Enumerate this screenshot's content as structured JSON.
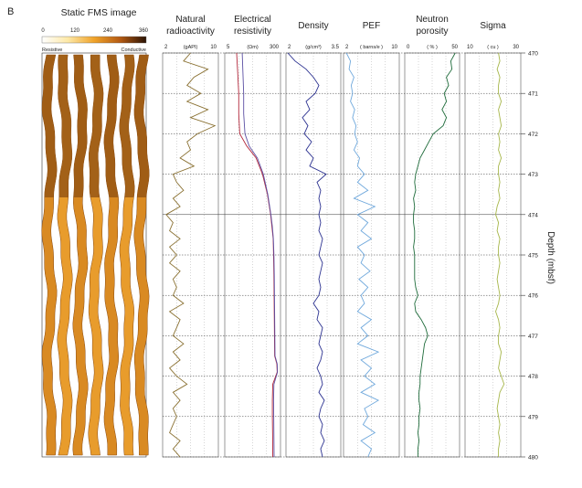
{
  "panel_label": "B",
  "fms": {
    "title": "Static FMS image",
    "ticks": [
      "0",
      "120",
      "240",
      "360"
    ],
    "left_label": "Resistive",
    "right_label": "Conductive"
  },
  "depth_axis": {
    "label": "Depth (mbsf)",
    "ticks": [
      "470",
      "471",
      "472",
      "473",
      "474",
      "475",
      "476",
      "477",
      "478",
      "479",
      "480"
    ]
  },
  "colors": {
    "radioactivity": "#8a7132",
    "resistivity_a": "#b3283c",
    "resistivity_b": "#5b4fa3",
    "density": "#2b3190",
    "pef": "#6fa8dc",
    "neutron": "#1e6b3a",
    "sigma": "#a6b649",
    "grid": "#000000"
  },
  "tracks": [
    {
      "id": "ngr",
      "title_lines": [
        "Natural",
        "radioactivity"
      ],
      "unit": "(gAPI)",
      "min_label": "2",
      "max_label": "10"
    },
    {
      "id": "res",
      "title_lines": [
        "Electrical",
        "resistivity"
      ],
      "unit": "(Ωm)",
      "min_label": "5",
      "max_label": "300"
    },
    {
      "id": "den",
      "title_lines": [
        "Density"
      ],
      "unit": "(g/cm³)",
      "min_label": "2",
      "max_label": "3.5"
    },
    {
      "id": "pef",
      "title_lines": [
        "PEF"
      ],
      "unit": "( barns/e )",
      "min_label": "2",
      "max_label": "10"
    },
    {
      "id": "nph",
      "title_lines": [
        "Neutron",
        "porosity"
      ],
      "unit": "( % )",
      "min_label": "0",
      "max_label": "50"
    },
    {
      "id": "sig",
      "title_lines": [
        "Sigma"
      ],
      "unit": "( cu )",
      "min_label": "10",
      "max_label": "30"
    }
  ],
  "chart_data": {
    "type": "line",
    "ylim": [
      470,
      480
    ],
    "series": [
      {
        "track": "ngr",
        "name": "",
        "xlim": [
          2,
          10
        ],
        "depth": [
          470.0,
          470.2,
          470.4,
          470.6,
          470.8,
          471.0,
          471.2,
          471.4,
          471.6,
          471.8,
          472.0,
          472.2,
          472.4,
          472.6,
          472.8,
          473.0,
          473.2,
          473.4,
          473.6,
          473.8,
          474.0,
          474.2,
          474.4,
          474.6,
          474.8,
          475.0,
          475.2,
          475.4,
          475.6,
          475.8,
          476.0,
          476.2,
          476.4,
          476.6,
          476.8,
          477.0,
          477.2,
          477.4,
          477.6,
          477.8,
          478.0,
          478.2,
          478.4,
          478.6,
          478.8,
          479.0,
          479.2,
          479.4,
          479.6,
          479.8,
          480.0
        ],
        "values": [
          6.0,
          5.0,
          8.5,
          6.5,
          5.5,
          7.5,
          5.5,
          8.5,
          6.0,
          9.5,
          7.0,
          5.5,
          6.0,
          4.5,
          6.5,
          3.5,
          4.0,
          5.0,
          3.5,
          4.5,
          2.5,
          3.5,
          3.0,
          4.5,
          3.0,
          4.0,
          3.0,
          4.5,
          3.5,
          4.0,
          3.5,
          5.0,
          3.0,
          4.5,
          4.0,
          3.5,
          5.0,
          3.5,
          4.5,
          3.0,
          4.0,
          5.5,
          3.5,
          4.5,
          3.5,
          4.0,
          3.5,
          3.0,
          4.5,
          3.5,
          4.5
        ]
      },
      {
        "track": "res",
        "name": "",
        "xlim": [
          5,
          300
        ],
        "depth": [
          470.0,
          470.5,
          471.0,
          471.5,
          472.0,
          472.3,
          472.6,
          473.0,
          473.5,
          474.0,
          474.3,
          474.6,
          475.0,
          475.5,
          476.0,
          476.5,
          477.0,
          477.5,
          477.7,
          477.9,
          478.2,
          478.6,
          479.0,
          479.5,
          480.0
        ],
        "values": [
          12,
          13,
          14,
          14,
          15,
          25,
          50,
          80,
          115,
          145,
          160,
          175,
          180,
          185,
          188,
          190,
          192,
          195,
          230,
          235,
          170,
          165,
          165,
          168,
          170
        ]
      },
      {
        "track": "res",
        "name": "",
        "xlim": [
          5,
          300
        ],
        "depth": [
          470.0,
          470.5,
          471.0,
          471.5,
          472.0,
          472.3,
          472.6,
          473.0,
          473.5,
          474.0,
          474.3,
          474.6,
          475.0,
          475.5,
          476.0,
          476.5,
          477.0,
          477.5,
          477.7,
          477.9,
          478.2,
          478.6,
          479.0,
          479.5,
          480.0
        ],
        "values": [
          18,
          19,
          20,
          20,
          22,
          30,
          55,
          85,
          118,
          148,
          165,
          178,
          185,
          190,
          192,
          195,
          198,
          200,
          235,
          240,
          185,
          180,
          182,
          185,
          188
        ]
      },
      {
        "track": "den",
        "name": "",
        "xlim": [
          2,
          3.5
        ],
        "depth": [
          470.0,
          470.2,
          470.4,
          470.6,
          470.8,
          471.0,
          471.2,
          471.4,
          471.6,
          471.8,
          472.0,
          472.2,
          472.4,
          472.6,
          472.8,
          473.0,
          473.2,
          473.4,
          473.6,
          473.8,
          474.0,
          474.2,
          474.4,
          474.6,
          474.8,
          475.0,
          475.2,
          475.4,
          475.6,
          475.8,
          476.0,
          476.2,
          476.4,
          476.6,
          476.8,
          477.0,
          477.2,
          477.4,
          477.6,
          477.8,
          478.0,
          478.2,
          478.4,
          478.6,
          478.8,
          479.0,
          479.2,
          479.4,
          479.6,
          479.8,
          480.0
        ],
        "values": [
          2.05,
          2.25,
          2.55,
          2.75,
          2.9,
          2.8,
          2.55,
          2.65,
          2.45,
          2.6,
          2.5,
          2.7,
          2.55,
          2.75,
          2.65,
          3.1,
          2.85,
          2.95,
          2.9,
          2.95,
          2.9,
          2.95,
          2.9,
          3.0,
          2.95,
          2.9,
          3.0,
          2.95,
          2.9,
          2.95,
          2.9,
          2.75,
          2.9,
          2.85,
          3.0,
          2.95,
          2.9,
          3.0,
          2.95,
          2.85,
          2.95,
          3.0,
          2.9,
          3.05,
          2.95,
          2.9,
          3.0,
          2.95,
          3.05,
          2.95,
          3.0
        ]
      },
      {
        "track": "pef",
        "name": "",
        "xlim": [
          2,
          10
        ],
        "depth": [
          470.0,
          470.2,
          470.4,
          470.6,
          470.8,
          471.0,
          471.2,
          471.4,
          471.6,
          471.8,
          472.0,
          472.2,
          472.4,
          472.6,
          472.8,
          473.0,
          473.2,
          473.4,
          473.6,
          473.8,
          474.0,
          474.2,
          474.4,
          474.6,
          474.8,
          475.0,
          475.2,
          475.4,
          475.6,
          475.8,
          476.0,
          476.2,
          476.4,
          476.6,
          476.8,
          477.0,
          477.2,
          477.4,
          477.6,
          477.8,
          478.0,
          478.2,
          478.4,
          478.6,
          478.8,
          479.0,
          479.2,
          479.4,
          479.6,
          479.8,
          480.0
        ],
        "values": [
          2.4,
          3.0,
          2.8,
          3.5,
          3.1,
          3.3,
          3.0,
          3.6,
          3.3,
          3.8,
          3.6,
          4.0,
          3.5,
          4.3,
          4.0,
          5.0,
          4.0,
          5.5,
          3.5,
          6.5,
          4.0,
          5.5,
          4.5,
          6.0,
          4.0,
          5.0,
          4.5,
          5.8,
          4.2,
          5.5,
          4.5,
          5.0,
          4.0,
          6.0,
          4.5,
          5.5,
          4.0,
          7.0,
          4.5,
          6.0,
          5.0,
          6.5,
          4.5,
          7.0,
          5.0,
          5.5,
          4.8,
          6.5,
          4.5,
          6.0,
          5.5
        ]
      },
      {
        "track": "nph",
        "name": "",
        "xlim": [
          0,
          50
        ],
        "depth": [
          470.0,
          470.2,
          470.4,
          470.6,
          470.8,
          471.0,
          471.2,
          471.4,
          471.6,
          471.8,
          472.0,
          472.2,
          472.4,
          472.6,
          472.8,
          473.0,
          473.2,
          473.4,
          473.6,
          473.8,
          474.0,
          474.2,
          474.4,
          474.6,
          474.8,
          475.0,
          475.2,
          475.4,
          475.6,
          475.8,
          476.0,
          476.2,
          476.4,
          476.6,
          476.8,
          477.0,
          477.2,
          477.4,
          477.6,
          477.8,
          478.0,
          478.2,
          478.4,
          478.6,
          478.8,
          479.0,
          479.2,
          479.4,
          479.6,
          479.8,
          480.0
        ],
        "values": [
          46,
          42,
          43,
          38,
          40,
          36,
          38,
          34,
          38,
          35,
          26,
          22,
          18,
          14,
          12,
          10,
          9,
          10,
          8,
          9,
          8,
          8,
          9,
          9,
          8,
          9,
          9,
          9,
          9,
          10,
          12,
          9,
          10,
          15,
          19,
          21,
          18,
          17,
          16,
          15,
          14,
          14,
          13,
          13,
          14,
          13,
          13,
          12,
          13,
          12,
          12
        ]
      },
      {
        "track": "sig",
        "name": "",
        "xlim": [
          10,
          30
        ],
        "depth": [
          470.0,
          470.2,
          470.4,
          470.6,
          470.8,
          471.0,
          471.2,
          471.4,
          471.6,
          471.8,
          472.0,
          472.2,
          472.4,
          472.6,
          472.8,
          473.0,
          473.2,
          473.4,
          473.6,
          473.8,
          474.0,
          474.2,
          474.4,
          474.6,
          474.8,
          475.0,
          475.2,
          475.4,
          475.6,
          475.8,
          476.0,
          476.2,
          476.4,
          476.6,
          476.8,
          477.0,
          477.2,
          477.4,
          477.6,
          477.8,
          478.0,
          478.2,
          478.4,
          478.6,
          478.8,
          479.0,
          479.2,
          479.4,
          479.6,
          479.8,
          480.0
        ],
        "values": [
          22,
          22.5,
          21.5,
          22.5,
          22,
          22,
          23,
          22,
          22.5,
          23,
          22,
          22.5,
          22,
          23,
          22,
          22,
          22.5,
          22,
          22.5,
          21.5,
          21,
          22,
          21.5,
          22.5,
          22,
          22,
          22.5,
          22,
          21.5,
          22,
          22.5,
          22,
          21,
          22,
          22.5,
          22,
          22,
          23,
          22.5,
          22,
          23,
          24,
          22.5,
          22,
          21.5,
          22,
          22.5,
          22,
          22.5,
          22,
          22
        ]
      }
    ]
  }
}
